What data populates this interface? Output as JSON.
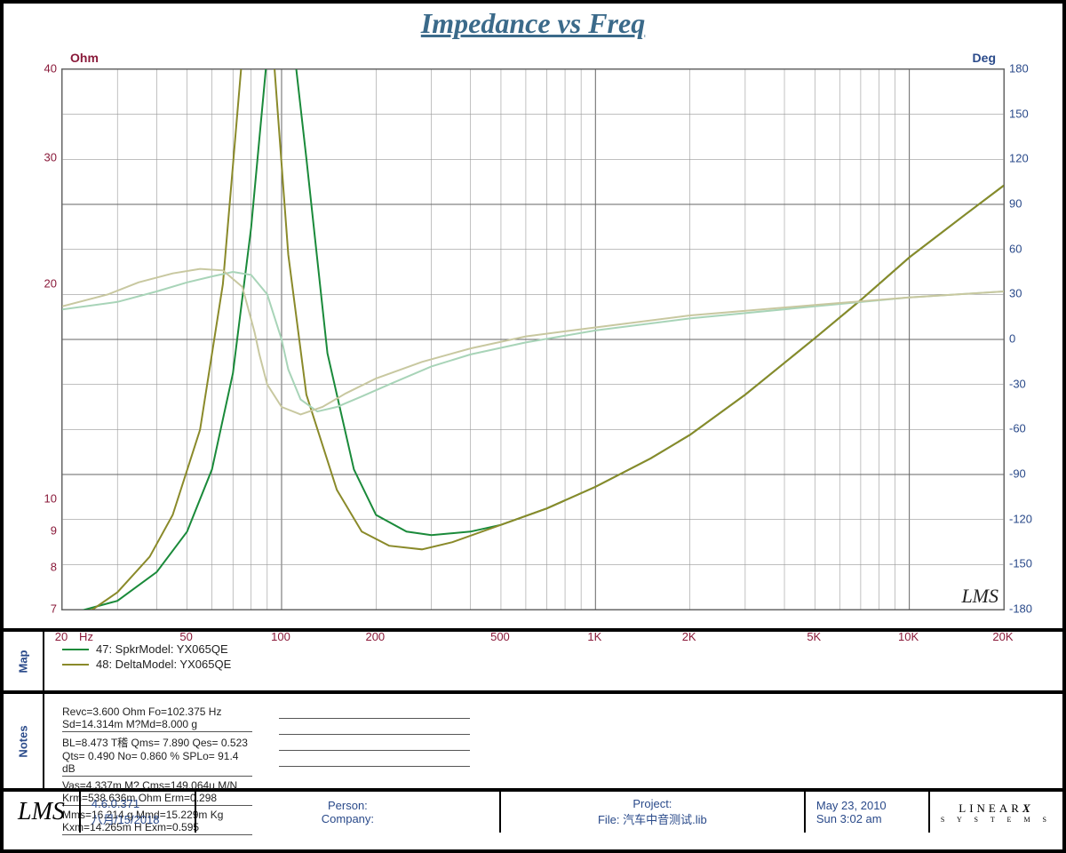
{
  "title": "Impedance vs Freq",
  "colors": {
    "title": "#3b6a8a",
    "left_axis": "#8a1a3a",
    "right_axis": "#2a4a8a",
    "grid": "#999999",
    "grid_major": "#666666",
    "background": "#ffffff",
    "border": "#000000"
  },
  "chart": {
    "type": "impedance-phase-log",
    "x_axis": {
      "scale": "log",
      "unit": "Hz",
      "min": 20,
      "max": 20000,
      "ticks": [
        {
          "v": 20,
          "l": "20"
        },
        {
          "v": 50,
          "l": "50"
        },
        {
          "v": 100,
          "l": "100"
        },
        {
          "v": 200,
          "l": "200"
        },
        {
          "v": 500,
          "l": "500"
        },
        {
          "v": 1000,
          "l": "1K"
        },
        {
          "v": 2000,
          "l": "2K"
        },
        {
          "v": 5000,
          "l": "5K"
        },
        {
          "v": 10000,
          "l": "10K"
        },
        {
          "v": 20000,
          "l": "20K"
        }
      ],
      "minor_per_decade": [
        2,
        3,
        4,
        5,
        6,
        7,
        8,
        9
      ]
    },
    "y_left": {
      "label": "Ohm",
      "scale": "log",
      "min": 7,
      "max": 40,
      "ticks": [
        7,
        8,
        9,
        10,
        20,
        30,
        40
      ]
    },
    "y_right": {
      "label": "Deg",
      "scale": "linear",
      "min": -180,
      "max": 180,
      "step": 30,
      "ticks": [
        -180,
        -150,
        -120,
        -90,
        -60,
        -30,
        0,
        30,
        60,
        90,
        120,
        150,
        180
      ]
    },
    "series": [
      {
        "id": "47-imp",
        "name": "47: SpkrModel: YX065QE",
        "axis": "left",
        "color": "#1a8a3a",
        "width": 2,
        "points": [
          [
            20,
            6.8
          ],
          [
            30,
            7.2
          ],
          [
            40,
            7.9
          ],
          [
            50,
            9.0
          ],
          [
            60,
            11.0
          ],
          [
            70,
            15.0
          ],
          [
            80,
            24.0
          ],
          [
            90,
            50.0
          ],
          [
            100,
            120.0
          ],
          [
            102,
            140.0
          ],
          [
            105,
            120.0
          ],
          [
            110,
            60.0
          ],
          [
            120,
            30.0
          ],
          [
            140,
            16.0
          ],
          [
            170,
            11.0
          ],
          [
            200,
            9.5
          ],
          [
            250,
            9.0
          ],
          [
            300,
            8.9
          ],
          [
            400,
            9.0
          ],
          [
            500,
            9.2
          ],
          [
            700,
            9.7
          ],
          [
            1000,
            10.4
          ],
          [
            1500,
            11.4
          ],
          [
            2000,
            12.3
          ],
          [
            3000,
            14.0
          ],
          [
            5000,
            16.8
          ],
          [
            7000,
            19.0
          ],
          [
            10000,
            21.8
          ],
          [
            15000,
            25.0
          ],
          [
            20000,
            27.5
          ]
        ]
      },
      {
        "id": "48-imp",
        "name": "48: DeltaModel: YX065QE",
        "axis": "left",
        "color": "#8a8a2a",
        "width": 2,
        "points": [
          [
            20,
            6.8
          ],
          [
            25,
            7.0
          ],
          [
            30,
            7.4
          ],
          [
            38,
            8.3
          ],
          [
            45,
            9.5
          ],
          [
            55,
            12.5
          ],
          [
            65,
            20.0
          ],
          [
            75,
            45.0
          ],
          [
            82,
            100.0
          ],
          [
            85,
            130.0
          ],
          [
            88,
            100.0
          ],
          [
            95,
            40.0
          ],
          [
            105,
            22.0
          ],
          [
            120,
            14.0
          ],
          [
            150,
            10.3
          ],
          [
            180,
            9.0
          ],
          [
            220,
            8.6
          ],
          [
            280,
            8.5
          ],
          [
            350,
            8.7
          ],
          [
            500,
            9.2
          ],
          [
            700,
            9.7
          ],
          [
            1000,
            10.4
          ],
          [
            1500,
            11.4
          ],
          [
            2000,
            12.3
          ],
          [
            3000,
            14.0
          ],
          [
            5000,
            16.8
          ],
          [
            7000,
            19.0
          ],
          [
            10000,
            21.8
          ],
          [
            15000,
            25.0
          ],
          [
            20000,
            27.5
          ]
        ]
      },
      {
        "id": "47-phase",
        "name": "47 phase",
        "axis": "right",
        "color": "#a8d4b8",
        "width": 2,
        "points": [
          [
            20,
            20
          ],
          [
            30,
            25
          ],
          [
            40,
            32
          ],
          [
            50,
            38
          ],
          [
            60,
            42
          ],
          [
            70,
            45
          ],
          [
            80,
            43
          ],
          [
            90,
            30
          ],
          [
            100,
            0
          ],
          [
            105,
            -20
          ],
          [
            115,
            -40
          ],
          [
            130,
            -48
          ],
          [
            150,
            -45
          ],
          [
            180,
            -38
          ],
          [
            220,
            -30
          ],
          [
            300,
            -18
          ],
          [
            400,
            -10
          ],
          [
            600,
            -2
          ],
          [
            1000,
            6
          ],
          [
            2000,
            14
          ],
          [
            5000,
            22
          ],
          [
            10000,
            28
          ],
          [
            20000,
            32
          ]
        ]
      },
      {
        "id": "48-phase",
        "name": "48 phase",
        "axis": "right",
        "color": "#c8c8a0",
        "width": 2,
        "points": [
          [
            20,
            22
          ],
          [
            28,
            30
          ],
          [
            35,
            38
          ],
          [
            45,
            44
          ],
          [
            55,
            47
          ],
          [
            65,
            46
          ],
          [
            75,
            35
          ],
          [
            82,
            5
          ],
          [
            85,
            -10
          ],
          [
            90,
            -30
          ],
          [
            100,
            -45
          ],
          [
            115,
            -50
          ],
          [
            135,
            -45
          ],
          [
            160,
            -36
          ],
          [
            200,
            -26
          ],
          [
            280,
            -15
          ],
          [
            400,
            -6
          ],
          [
            600,
            2
          ],
          [
            1000,
            8
          ],
          [
            2000,
            16
          ],
          [
            5000,
            23
          ],
          [
            10000,
            28
          ],
          [
            20000,
            32
          ]
        ]
      }
    ],
    "watermark": "LMS"
  },
  "legend": {
    "tab": "Map",
    "items": [
      {
        "color": "#1a8a3a",
        "label": "47: SpkrModel: YX065QE"
      },
      {
        "color": "#8a8a2a",
        "label": "48: DeltaModel: YX065QE"
      }
    ]
  },
  "notes": {
    "tab": "Notes",
    "left": [
      "Revc=3.600 Ohm  Fo=102.375 Hz  Sd=14.314m M?Md=8.000 g",
      "BL=8.473 T稽  Qms= 7.890  Qes= 0.523  Qts= 0.490  No= 0.860 %  SPLo= 91.4 dB",
      "Vas=4.337m M?  Cms=149.064u M/N  Krm=538.636m Ohm  Erm=0.298",
      "Mms=16.214 g  Mmd=15.229m Kg  Kxm=14.265m H  Exm=0.595"
    ],
    "right": [
      "",
      "",
      "",
      ""
    ]
  },
  "footer": {
    "logo": "LMS",
    "version": "4.6.0.371",
    "date_local": "八月/15/2018",
    "person_label": "Person:",
    "company_label": "Company:",
    "person": "",
    "company": "",
    "project_label": "Project:",
    "file_label": "File:",
    "project": "",
    "file": "汽车中音测试.lib",
    "date": "May 23, 2010",
    "time": "Sun  3:02 am",
    "brand": "LINEARX",
    "brand_sub": "S Y S T E M S"
  }
}
